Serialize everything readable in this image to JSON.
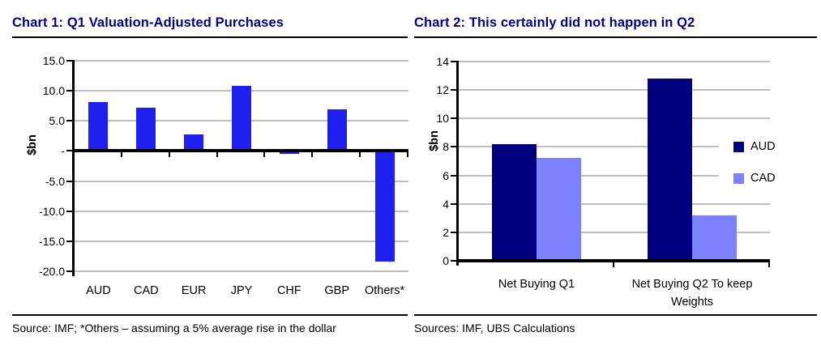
{
  "colors": {
    "title": "#00008b",
    "gridline": "#c0c0c0",
    "axis": "#000000",
    "chart1_bar": "#1f1ff0",
    "aud": "#000080",
    "cad": "#7d81fb"
  },
  "chart_data": [
    {
      "type": "bar",
      "title": "Chart 1: Q1 Valuation-Adjusted Purchases",
      "categories": [
        "AUD",
        "CAD",
        "EUR",
        "JPY",
        "CHF",
        "GBP",
        "Others*"
      ],
      "values": [
        8.2,
        7.2,
        2.7,
        10.8,
        -0.5,
        6.9,
        -18.4
      ],
      "bar_color": "#1f1ff0",
      "xlabel": "",
      "ylabel": "$bn",
      "ylim": [
        -20,
        15
      ],
      "yticks": [
        15,
        10,
        5,
        0,
        -5,
        -10,
        -15,
        -20
      ],
      "ytick_labels": [
        "15.0",
        "10.0",
        "5.0",
        "-",
        "-5.0",
        "-10.0",
        "-15.0",
        "-20.0"
      ],
      "grid": true,
      "source": "Source: IMF; *Others – assuming a 5% average rise in the dollar"
    },
    {
      "type": "bar",
      "title": "Chart 2: This certainly did not happen in Q2",
      "categories": [
        "Net Buying Q1",
        "Net Buying Q2 To keep Weights"
      ],
      "series": [
        {
          "name": "AUD",
          "color": "#000080",
          "values": [
            8.2,
            12.8
          ]
        },
        {
          "name": "CAD",
          "color": "#7d81fb",
          "values": [
            7.2,
            3.2
          ]
        }
      ],
      "xlabel": "",
      "ylabel": "$bn",
      "ylim": [
        0,
        14
      ],
      "yticks": [
        0,
        2,
        4,
        6,
        8,
        10,
        12,
        14
      ],
      "grid": true,
      "legend_position": "right",
      "source": "Sources: IMF, UBS Calculations"
    }
  ]
}
